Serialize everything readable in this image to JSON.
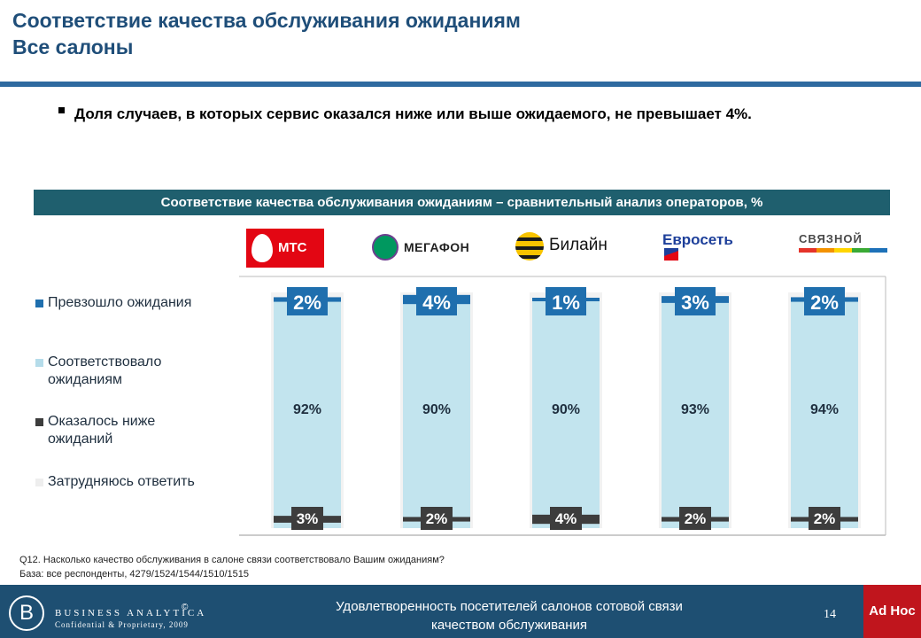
{
  "page": {
    "title_line1": "Соответствие качества обслуживания ожиданиям",
    "title_line2": "Все салоны",
    "bullet": "Доля случаев, в которых сервис оказался ниже или выше ожидаемого, не превышает 4%.",
    "chart_header": "Соответствие качества обслуживания ожиданиям – сравнительный анализ операторов, %",
    "footnote_line1": "Q12. Насколько качество  обслуживания в салоне связи соответствовало Вашим ожиданиям?",
    "footnote_line2": "База: все респонденты, 4279/1524/1544/1510/1515"
  },
  "logos": {
    "mts": "МТС",
    "megafon": "МЕГАФОН",
    "beeline": "Билайн",
    "euroset": "Евросеть",
    "svyaznoy": "СВЯЗНОЙ"
  },
  "footer": {
    "company_initial": "B",
    "company": "BUSINESS ANALYTICA",
    "copyright": "©",
    "confidential": "Confidential & Proprietary, 2009",
    "title_line1": "Удовлетворенность посетителей салонов сотовой связи",
    "title_line2": "качеством обслуживания",
    "page_number": "14",
    "tag": "Ad Hoc"
  },
  "colors": {
    "exceeded": "#1f6fae",
    "matched": "#c2e4ee",
    "below": "#3d3d3d",
    "unsure": "#f0f0f0",
    "header_bg": "#1f5f6e"
  },
  "chart_data": {
    "type": "bar",
    "stacked": true,
    "categories": [
      "МТС",
      "МегаФон",
      "Билайн",
      "Евросеть",
      "Связной"
    ],
    "series": [
      {
        "name": "Превзошло  ожидания",
        "values": [
          2,
          4,
          1,
          3,
          2
        ]
      },
      {
        "name": "Соответствовало ожиданиям",
        "values": [
          92,
          90,
          90,
          93,
          94
        ]
      },
      {
        "name": "Оказалось ниже ожиданий",
        "values": [
          3,
          2,
          4,
          2,
          2
        ]
      },
      {
        "name": "Затрудняюсь ответить",
        "values": [
          null,
          null,
          null,
          null,
          null
        ]
      }
    ],
    "value_labels": {
      "exceeded": [
        "2%",
        "4%",
        "1%",
        "3%",
        "2%"
      ],
      "matched": [
        "92%",
        "90%",
        "90%",
        "93%",
        "94%"
      ],
      "below": [
        "3%",
        "2%",
        "4%",
        "2%",
        "2%"
      ]
    },
    "legend_position": "left",
    "ylim": [
      0,
      100
    ]
  }
}
